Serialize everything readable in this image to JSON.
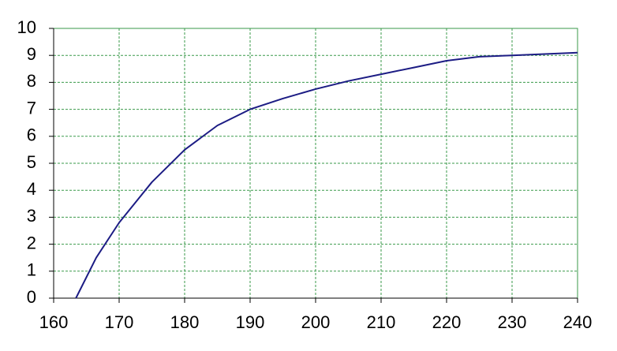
{
  "chart_data": {
    "type": "line",
    "x": [
      163.4,
      166.5,
      170,
      175,
      180,
      185,
      190,
      195,
      200,
      205,
      210,
      215,
      220,
      225,
      230,
      235,
      240
    ],
    "values": [
      0,
      1.5,
      2.8,
      4.3,
      5.5,
      6.4,
      7.0,
      7.4,
      7.75,
      8.05,
      8.3,
      8.55,
      8.8,
      8.95,
      9.0,
      9.05,
      9.1
    ],
    "color": "#1c1c84",
    "xlim": [
      160,
      240
    ],
    "xticks": [
      160,
      170,
      180,
      190,
      200,
      210,
      220,
      230,
      240
    ],
    "ylim": [
      0,
      10
    ],
    "yticks": [
      0,
      1,
      2,
      3,
      4,
      5,
      6,
      7,
      8,
      9,
      10
    ],
    "grid": true
  }
}
